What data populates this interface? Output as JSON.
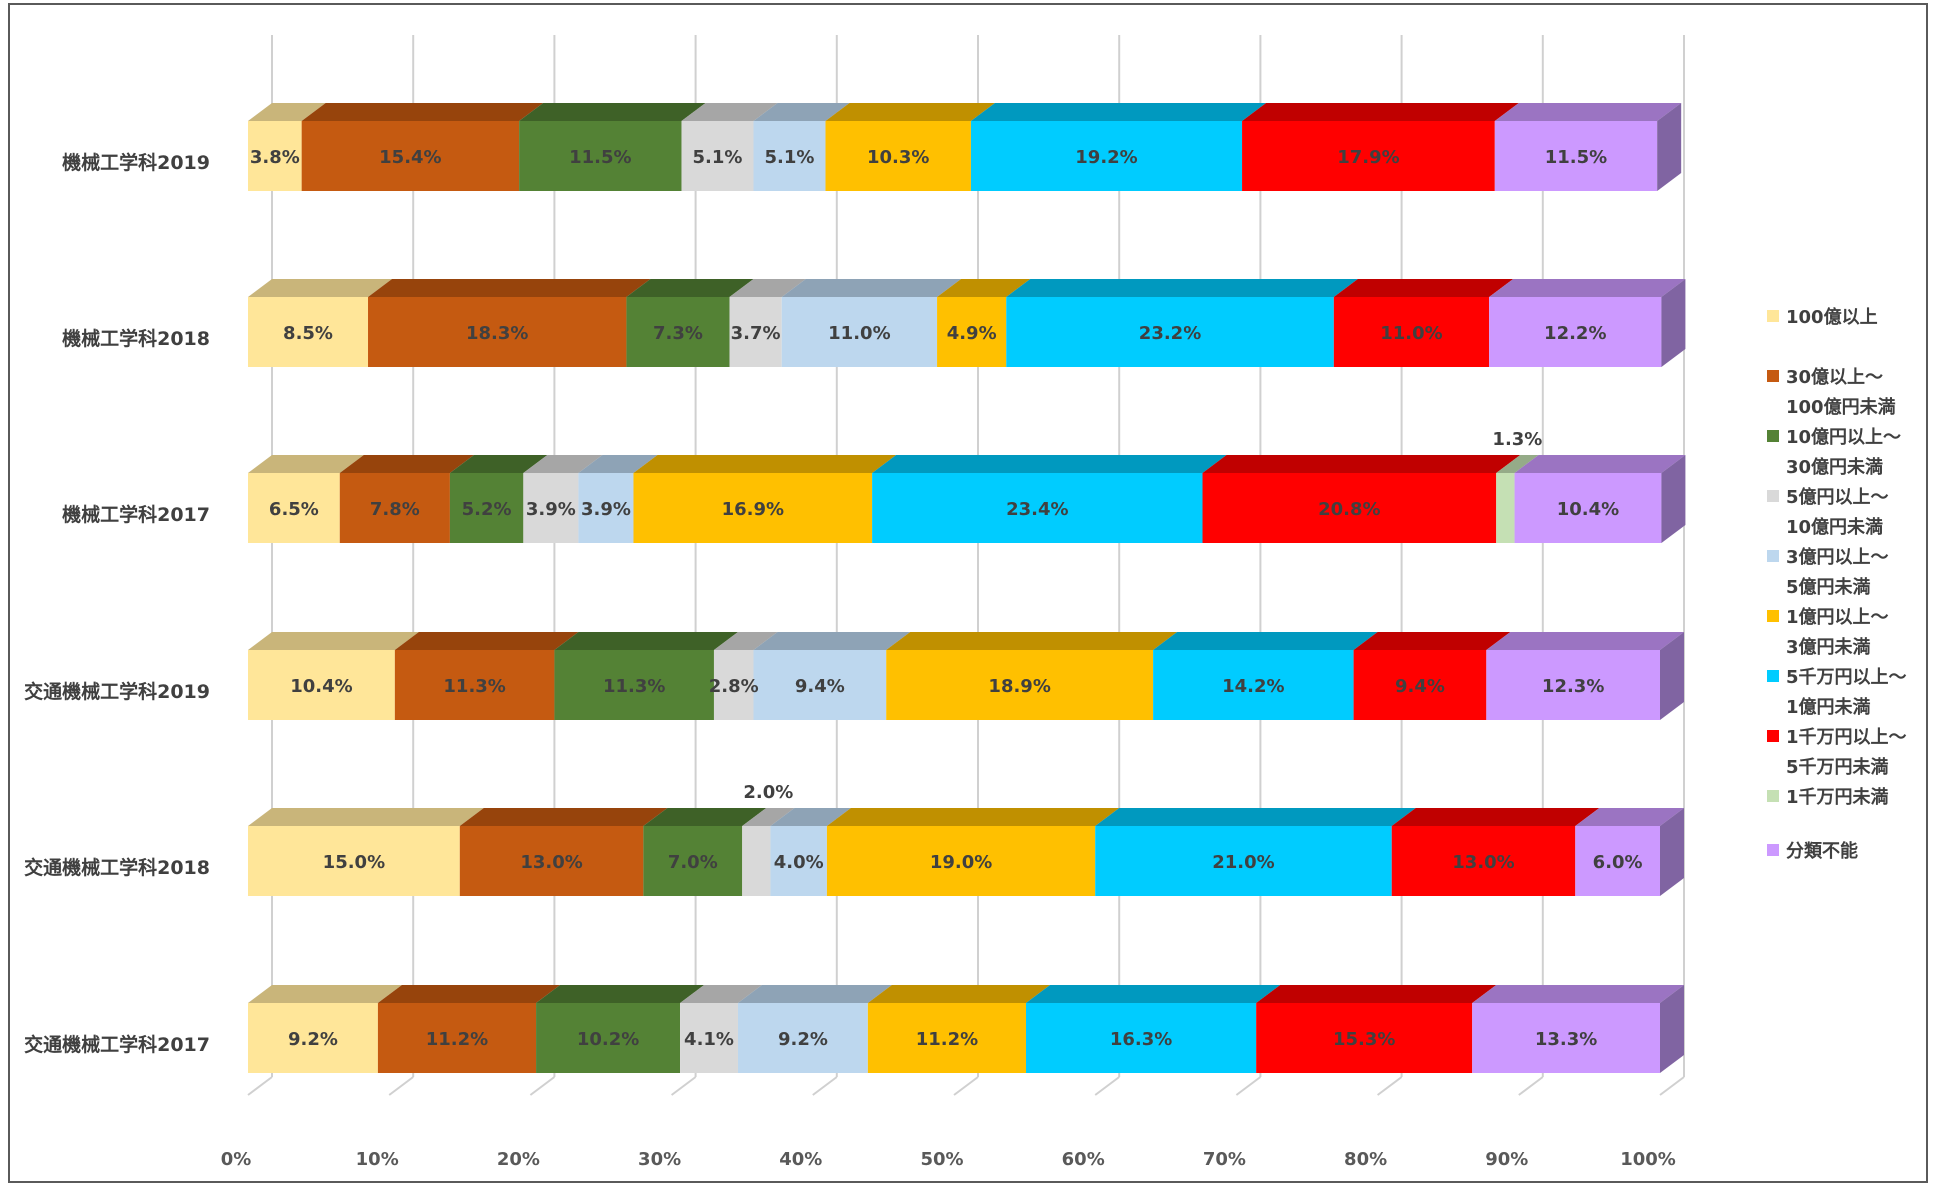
{
  "chart_data": {
    "type": "bar",
    "orientation": "horizontal",
    "stacking": "percent",
    "style": "3d",
    "grid": true,
    "legend_position": "right",
    "xlim": [
      0,
      100
    ],
    "x_ticks": [
      "0%",
      "10%",
      "20%",
      "30%",
      "40%",
      "50%",
      "60%",
      "70%",
      "80%",
      "90%",
      "100%"
    ],
    "categories": [
      "機械工学科2019",
      "機械工学科2018",
      "機械工学科2017",
      "交通機械工学科2019",
      "交通機械工学科2018",
      "交通機械工学科2017"
    ],
    "series": [
      {
        "name": "100億以上",
        "legend_lines": [
          "100億以上"
        ],
        "color": "#FFE699",
        "top_color": "#C9B57A",
        "values": [
          3.8,
          8.5,
          6.5,
          10.4,
          15.0,
          9.2
        ],
        "labels": [
          "3.8%",
          "8.5%",
          "6.5%",
          "10.4%",
          "15.0%",
          "9.2%"
        ]
      },
      {
        "name": "30億以上～100億円未満",
        "legend_lines": [
          "30億以上～",
          "100億円未満"
        ],
        "color": "#C55A11",
        "top_color": "#97440C",
        "values": [
          15.4,
          18.3,
          7.8,
          11.3,
          13.0,
          11.2
        ],
        "labels": [
          "15.4%",
          "18.3%",
          "7.8%",
          "11.3%",
          "13.0%",
          "11.2%"
        ]
      },
      {
        "name": "10億円以上～30億円未満",
        "legend_lines": [
          "10億円以上～",
          "30億円未満"
        ],
        "color": "#548235",
        "top_color": "#3E6127",
        "values": [
          11.5,
          7.3,
          5.2,
          11.3,
          7.0,
          10.2
        ],
        "labels": [
          "11.5%",
          "7.3%",
          "5.2%",
          "11.3%",
          "7.0%",
          "10.2%"
        ]
      },
      {
        "name": "5億円以上～10億円未満",
        "legend_lines": [
          "5億円以上～",
          "10億円未満"
        ],
        "color": "#D9D9D9",
        "top_color": "#A6A6A6",
        "values": [
          5.1,
          3.7,
          3.9,
          2.8,
          2.0,
          4.1
        ],
        "labels": [
          "5.1%",
          "3.7%",
          "3.9%",
          "2.8%",
          "2.0%",
          "4.1%"
        ]
      },
      {
        "name": "3億円以上～5億円未満",
        "legend_lines": [
          "3億円以上～",
          "5億円未満"
        ],
        "color": "#BDD7EE",
        "top_color": "#8EA3B6",
        "values": [
          5.1,
          11.0,
          3.9,
          9.4,
          4.0,
          9.2
        ],
        "labels": [
          "5.1%",
          "11.0%",
          "3.9%",
          "9.4%",
          "4.0%",
          "9.2%"
        ]
      },
      {
        "name": "1億円以上～3億円未満",
        "legend_lines": [
          "1億円以上～",
          "3億円未満"
        ],
        "color": "#FFC000",
        "top_color": "#C09000",
        "values": [
          10.3,
          4.9,
          16.9,
          18.9,
          19.0,
          11.2
        ],
        "labels": [
          "10.3%",
          "4.9%",
          "16.9%",
          "18.9%",
          "19.0%",
          "11.2%"
        ]
      },
      {
        "name": "5千万円以上～1億円未満",
        "legend_lines": [
          "5千万円以上～",
          "1億円未満"
        ],
        "color": "#00CCFF",
        "top_color": "#0099BF",
        "values": [
          19.2,
          23.2,
          23.4,
          14.2,
          21.0,
          16.3
        ],
        "labels": [
          "19.2%",
          "23.2%",
          "23.4%",
          "14.2%",
          "21.0%",
          "16.3%"
        ]
      },
      {
        "name": "1千万円以上～5千万円未満",
        "legend_lines": [
          "1千万円以上～",
          "5千万円未満"
        ],
        "color": "#FF0000",
        "top_color": "#C00000",
        "values": [
          17.9,
          11.0,
          20.8,
          9.4,
          13.0,
          15.3
        ],
        "labels": [
          "17.9%",
          "11.0%",
          "20.8%",
          "9.4%",
          "13.0%",
          "15.3%"
        ]
      },
      {
        "name": "1千万円未満",
        "legend_lines": [
          "1千万円未満"
        ],
        "color": "#C5E0B4",
        "top_color": "#95AB88",
        "values": [
          0,
          0,
          1.3,
          0,
          0,
          0
        ],
        "labels": [
          "",
          "",
          "1.3%",
          "",
          "",
          ""
        ]
      },
      {
        "name": "分類不能",
        "legend_lines": [
          "分類不能"
        ],
        "color": "#CC99FF",
        "top_color": "#9B74C2",
        "side_color": "#8064A2",
        "values": [
          11.5,
          12.2,
          10.4,
          12.3,
          6.0,
          13.3
        ],
        "labels": [
          "11.5%",
          "12.2%",
          "10.4%",
          "12.3%",
          "6.0%",
          "13.3%"
        ]
      }
    ]
  }
}
